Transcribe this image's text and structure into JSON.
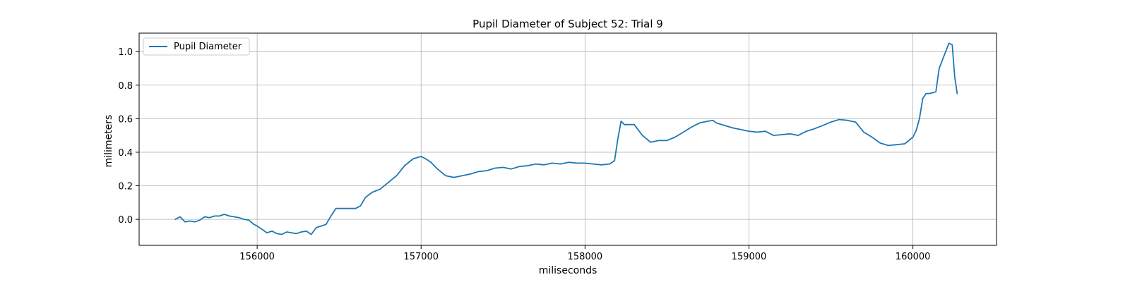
{
  "chart_data": {
    "type": "line",
    "title": "Pupil Diameter of Subject 52: Trial 9",
    "xlabel": "miliseconds",
    "ylabel": "milimeters",
    "xlim": [
      155280,
      160510
    ],
    "ylim": [
      -0.155,
      1.11
    ],
    "xticks": [
      156000,
      157000,
      158000,
      159000,
      160000
    ],
    "yticks": [
      0.0,
      0.2,
      0.4,
      0.6,
      0.8,
      1.0
    ],
    "grid": true,
    "legend": {
      "position": "top-left"
    },
    "colors": {
      "line": "#1f77b4"
    },
    "series": [
      {
        "name": "Pupil Diameter",
        "x": [
          155500,
          155530,
          155560,
          155590,
          155620,
          155650,
          155680,
          155710,
          155740,
          155770,
          155800,
          155830,
          155860,
          155890,
          155920,
          155950,
          155980,
          156000,
          156030,
          156060,
          156090,
          156120,
          156150,
          156180,
          156210,
          156240,
          156270,
          156300,
          156330,
          156360,
          156390,
          156420,
          156450,
          156480,
          156510,
          156540,
          156570,
          156600,
          156630,
          156660,
          156700,
          156750,
          156800,
          156850,
          156900,
          156950,
          156980,
          157000,
          157030,
          157060,
          157100,
          157150,
          157200,
          157250,
          157300,
          157350,
          157400,
          157450,
          157500,
          157550,
          157600,
          157650,
          157700,
          157750,
          157800,
          157850,
          157900,
          157950,
          158000,
          158050,
          158100,
          158150,
          158180,
          158200,
          158220,
          158240,
          158260,
          158300,
          158350,
          158400,
          158450,
          158500,
          158550,
          158600,
          158650,
          158700,
          158750,
          158780,
          158800,
          158850,
          158900,
          158950,
          159000,
          159050,
          159100,
          159150,
          159200,
          159250,
          159300,
          159350,
          159400,
          159450,
          159500,
          159550,
          159600,
          159650,
          159700,
          159750,
          159800,
          159850,
          159900,
          159950,
          160000,
          160020,
          160040,
          160060,
          160080,
          160100,
          160140,
          160160,
          160180,
          160200,
          160220,
          160240,
          160255,
          160270
        ],
        "y": [
          0.0,
          0.015,
          -0.015,
          -0.01,
          -0.015,
          -0.005,
          0.015,
          0.01,
          0.02,
          0.02,
          0.03,
          0.02,
          0.015,
          0.01,
          0.0,
          -0.005,
          -0.03,
          -0.04,
          -0.06,
          -0.08,
          -0.07,
          -0.085,
          -0.09,
          -0.075,
          -0.08,
          -0.085,
          -0.075,
          -0.07,
          -0.09,
          -0.05,
          -0.04,
          -0.03,
          0.02,
          0.065,
          0.065,
          0.065,
          0.065,
          0.065,
          0.08,
          0.13,
          0.16,
          0.18,
          0.22,
          0.26,
          0.32,
          0.36,
          0.37,
          0.375,
          0.36,
          0.34,
          0.3,
          0.26,
          0.25,
          0.26,
          0.27,
          0.285,
          0.29,
          0.305,
          0.31,
          0.3,
          0.315,
          0.32,
          0.33,
          0.325,
          0.335,
          0.33,
          0.34,
          0.335,
          0.335,
          0.33,
          0.325,
          0.33,
          0.35,
          0.48,
          0.585,
          0.565,
          0.565,
          0.565,
          0.5,
          0.46,
          0.47,
          0.47,
          0.49,
          0.52,
          0.55,
          0.575,
          0.585,
          0.59,
          0.575,
          0.56,
          0.545,
          0.535,
          0.525,
          0.52,
          0.525,
          0.5,
          0.505,
          0.51,
          0.5,
          0.525,
          0.54,
          0.56,
          0.58,
          0.595,
          0.59,
          0.58,
          0.52,
          0.49,
          0.455,
          0.44,
          0.445,
          0.45,
          0.49,
          0.53,
          0.6,
          0.72,
          0.75,
          0.75,
          0.76,
          0.9,
          0.95,
          1.0,
          1.05,
          1.04,
          0.85,
          0.75
        ]
      }
    ]
  }
}
